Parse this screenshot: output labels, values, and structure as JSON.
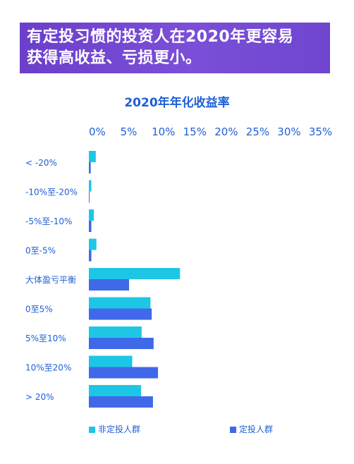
{
  "banner": {
    "line1": "有定投习惯的投资人在2020年更容易",
    "line2": "获得高收益、亏损更小。"
  },
  "colors": {
    "banner_bg": "#7048d2",
    "series_non_dca": "#1ec6e6",
    "series_dca": "#3f69e8",
    "text": "#1f5fd6"
  },
  "chart_data": {
    "type": "bar",
    "orientation": "horizontal",
    "title": "2020年年化收益率",
    "x_ticks": [
      "0%",
      "5%",
      "10%",
      "15%",
      "20%",
      "25%",
      "30%",
      "35%"
    ],
    "xlim": [
      0,
      35
    ],
    "categories": [
      "< -20%",
      "-10%至-20%",
      "-5%至-10%",
      "0至-5%",
      "大体盈亏平衡",
      "0至5%",
      "5%至10%",
      "10%至20%",
      "> 20%"
    ],
    "series": [
      {
        "name": "非定投人群",
        "color": "#1ec6e6",
        "values": [
          1.1,
          0.4,
          0.8,
          1.2,
          14.5,
          9.8,
          8.4,
          6.9,
          8.3
        ]
      },
      {
        "name": "定投人群",
        "color": "#3f69e8",
        "values": [
          0.3,
          0.1,
          0.4,
          0.4,
          6.4,
          10.0,
          10.3,
          11.0,
          10.2
        ]
      }
    ],
    "legend_position": "bottom"
  }
}
